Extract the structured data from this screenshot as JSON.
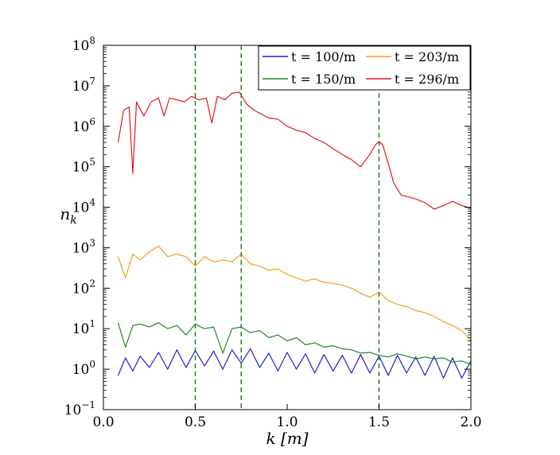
{
  "chart_data": {
    "type": "line",
    "title": "",
    "xlabel": "k [m]",
    "ylabel": "n_k",
    "y_scale": "log",
    "xlim": [
      0.0,
      2.0
    ],
    "ylim_exponent": [
      -1,
      8
    ],
    "x_ticks": [
      0.0,
      0.5,
      1.0,
      1.5,
      2.0
    ],
    "x_tick_labels": [
      "0.0",
      "0.5",
      "1.0",
      "1.5",
      "2.0"
    ],
    "y_tick_exponents": [
      -1,
      0,
      1,
      2,
      3,
      4,
      5,
      6,
      7,
      8
    ],
    "y_tick_base": "10",
    "vertical_lines": [
      0.5,
      0.75,
      1.5
    ],
    "vertical_line_color": "#2a7f2a",
    "legend_position": "top-right",
    "series": [
      {
        "name": "t = 100/m",
        "color": "#1f1fd6",
        "x": [
          0.08,
          0.12,
          0.16,
          0.2,
          0.25,
          0.3,
          0.35,
          0.4,
          0.45,
          0.5,
          0.55,
          0.6,
          0.65,
          0.7,
          0.75,
          0.8,
          0.85,
          0.9,
          0.95,
          1.0,
          1.05,
          1.1,
          1.15,
          1.2,
          1.25,
          1.3,
          1.35,
          1.4,
          1.45,
          1.5,
          1.55,
          1.6,
          1.65,
          1.7,
          1.75,
          1.8,
          1.85,
          1.9,
          1.95,
          2.0
        ],
        "y": [
          0.7,
          1.9,
          0.9,
          2.1,
          1.1,
          2.6,
          1.0,
          3.0,
          1.1,
          2.9,
          1.2,
          2.8,
          1.0,
          3.0,
          1.4,
          3.2,
          1.1,
          2.5,
          0.9,
          2.6,
          1.0,
          2.4,
          0.8,
          2.3,
          0.9,
          2.2,
          0.8,
          2.3,
          0.8,
          2.1,
          0.7,
          2.2,
          0.8,
          2.0,
          0.7,
          2.1,
          0.6,
          1.9,
          0.6,
          1.6
        ]
      },
      {
        "name": "t = 150/m",
        "color": "#1f8a1f",
        "x": [
          0.08,
          0.12,
          0.16,
          0.2,
          0.25,
          0.3,
          0.35,
          0.4,
          0.45,
          0.5,
          0.55,
          0.6,
          0.65,
          0.7,
          0.75,
          0.8,
          0.85,
          0.9,
          0.95,
          1.0,
          1.05,
          1.1,
          1.15,
          1.2,
          1.25,
          1.3,
          1.35,
          1.4,
          1.45,
          1.5,
          1.55,
          1.6,
          1.65,
          1.7,
          1.75,
          1.8,
          1.85,
          1.9,
          1.95,
          2.0
        ],
        "y": [
          14,
          3.5,
          12,
          13,
          11,
          14,
          10,
          12,
          7,
          13,
          10,
          11,
          2.5,
          10,
          11,
          8,
          9,
          6,
          7,
          5,
          6,
          4,
          4.5,
          3.5,
          3.8,
          3.2,
          3.0,
          2.5,
          2.6,
          2.2,
          2.0,
          2.4,
          2.1,
          1.8,
          2.0,
          1.8,
          1.9,
          1.5,
          1.6,
          1.3
        ]
      },
      {
        "name": "t = 203/m",
        "color": "#f2a11a",
        "x": [
          0.08,
          0.12,
          0.16,
          0.2,
          0.25,
          0.3,
          0.35,
          0.4,
          0.45,
          0.5,
          0.55,
          0.6,
          0.65,
          0.7,
          0.75,
          0.8,
          0.85,
          0.9,
          0.95,
          1.0,
          1.05,
          1.1,
          1.15,
          1.2,
          1.25,
          1.3,
          1.35,
          1.4,
          1.45,
          1.5,
          1.55,
          1.6,
          1.65,
          1.7,
          1.75,
          1.8,
          1.85,
          1.9,
          1.95,
          2.0
        ],
        "y": [
          600,
          180,
          700,
          500,
          800,
          1100,
          600,
          700,
          600,
          350,
          600,
          450,
          500,
          450,
          700,
          400,
          350,
          280,
          300,
          220,
          180,
          150,
          170,
          140,
          130,
          120,
          100,
          75,
          60,
          80,
          50,
          40,
          35,
          28,
          25,
          20,
          15,
          12,
          9,
          5
        ]
      },
      {
        "name": "t = 296/m",
        "color": "#e31a1c",
        "x": [
          0.08,
          0.11,
          0.14,
          0.16,
          0.18,
          0.22,
          0.26,
          0.3,
          0.33,
          0.36,
          0.4,
          0.44,
          0.48,
          0.52,
          0.56,
          0.59,
          0.62,
          0.66,
          0.7,
          0.74,
          0.78,
          0.82,
          0.86,
          0.9,
          0.95,
          1.0,
          1.05,
          1.1,
          1.15,
          1.2,
          1.25,
          1.3,
          1.35,
          1.4,
          1.45,
          1.48,
          1.5,
          1.52,
          1.55,
          1.58,
          1.62,
          1.66,
          1.7,
          1.75,
          1.8,
          1.85,
          1.9,
          1.95,
          2.0
        ],
        "y": [
          400000,
          2500000,
          3000000,
          70000,
          4000000,
          1800000,
          4000000,
          5000000,
          1800000,
          5000000,
          4500000,
          4000000,
          5500000,
          4500000,
          5000000,
          1200000,
          5500000,
          4500000,
          6500000,
          7000000,
          3500000,
          2500000,
          2000000,
          1600000,
          1500000,
          1000000,
          800000,
          700000,
          500000,
          400000,
          280000,
          200000,
          150000,
          100000,
          200000,
          350000,
          420000,
          350000,
          120000,
          40000,
          20000,
          18000,
          16000,
          13000,
          9000,
          11000,
          14000,
          11000,
          9500
        ]
      }
    ]
  }
}
